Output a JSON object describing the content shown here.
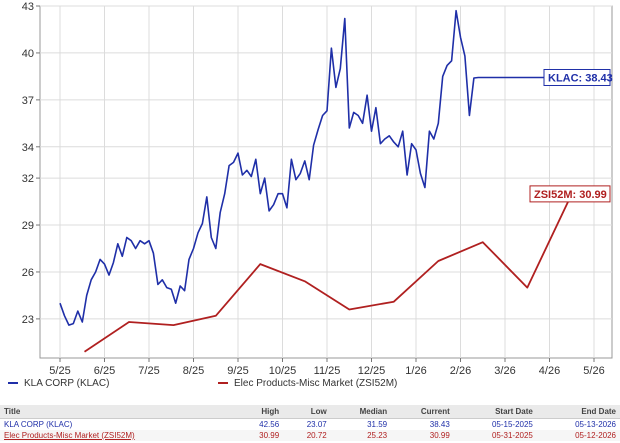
{
  "chart_data": {
    "type": "line",
    "x_ticks": [
      "5/25",
      "6/25",
      "7/25",
      "8/25",
      "9/25",
      "10/25",
      "11/25",
      "12/25",
      "1/26",
      "2/26",
      "3/26",
      "4/26",
      "5/26"
    ],
    "y_ticks": [
      23,
      26,
      29,
      32,
      34,
      37,
      40,
      43
    ],
    "ylim": [
      20.5,
      43
    ],
    "grid": true,
    "legend_position": "bottom-left",
    "series": [
      {
        "name": "KLA CORP (KLAC)",
        "color": "#1f2fa8",
        "label": "KLAC: 38.43",
        "t": [
          0.0,
          0.1,
          0.2,
          0.3,
          0.4,
          0.5,
          0.6,
          0.7,
          0.8,
          0.9,
          1.0,
          1.1,
          1.2,
          1.3,
          1.4,
          1.5,
          1.6,
          1.7,
          1.8,
          1.9,
          2.0,
          2.1,
          2.2,
          2.3,
          2.4,
          2.5,
          2.6,
          2.7,
          2.8,
          2.9,
          3.0,
          3.1,
          3.2,
          3.3,
          3.4,
          3.5,
          3.6,
          3.7,
          3.8,
          3.9,
          4.0,
          4.1,
          4.2,
          4.3,
          4.4,
          4.5,
          4.6,
          4.7,
          4.8,
          4.9,
          5.0,
          5.1,
          5.2,
          5.3,
          5.4,
          5.5,
          5.6,
          5.7,
          5.8,
          5.9,
          6.0,
          6.1,
          6.2,
          6.3,
          6.4,
          6.5,
          6.6,
          6.7,
          6.8,
          6.9,
          7.0,
          7.1,
          7.2,
          7.3,
          7.4,
          7.5,
          7.6,
          7.7,
          7.8,
          7.9,
          8.0,
          8.1,
          8.2,
          8.3,
          8.4,
          8.5,
          8.6,
          8.7,
          8.8,
          8.9,
          9.0,
          9.1,
          9.2,
          9.3,
          9.4,
          9.5,
          9.6,
          9.7,
          9.8,
          9.9,
          10.0,
          10.1,
          10.2,
          10.3,
          10.4,
          10.5,
          10.6,
          10.7,
          10.8,
          10.9,
          11.0,
          11.1,
          11.2,
          11.3,
          11.4,
          11.5,
          11.6,
          11.7
        ],
        "values": [
          24.0,
          23.2,
          22.6,
          22.7,
          23.5,
          22.8,
          24.5,
          25.5,
          26.0,
          26.8,
          26.5,
          25.8,
          26.6,
          27.8,
          27.0,
          28.2,
          28.0,
          27.5,
          28.0,
          27.8,
          28.0,
          27.2,
          25.2,
          25.5,
          25.0,
          24.9,
          24.0,
          25.1,
          24.8,
          26.8,
          27.5,
          28.5,
          29.1,
          30.8,
          28.2,
          27.5,
          29.8,
          31.0,
          32.8,
          33.0,
          33.6,
          32.2,
          32.5,
          32.1,
          33.2,
          31.0,
          32.0,
          29.9,
          30.3,
          31.0,
          31.0,
          30.1,
          33.2,
          31.9,
          32.3,
          33.1,
          31.9,
          34.1,
          35.1,
          36.0,
          36.3,
          40.3,
          37.8,
          39.0,
          42.2,
          35.2,
          36.2,
          36.0,
          35.5,
          37.3,
          35.0,
          36.5,
          34.2,
          34.5,
          34.7,
          34.3,
          34.0,
          35.0,
          32.2,
          34.2,
          33.8,
          32.3,
          31.4,
          35.0,
          34.5,
          35.5,
          38.5,
          39.2,
          39.5,
          42.7,
          41.0,
          39.8,
          36.0,
          38.4,
          38.43,
          38.43,
          38.43,
          38.43,
          38.43,
          38.43,
          38.43,
          38.43,
          38.43,
          38.43,
          38.43,
          38.43,
          38.43,
          38.43,
          38.43,
          38.43,
          38.43,
          38.43,
          38.43,
          38.43,
          38.43,
          38.43,
          38.43,
          38.43
        ]
      },
      {
        "name": "Elec Products-Misc Market (ZSI52M)",
        "color": "#b02020",
        "label": "ZSI52M: 30.99",
        "t": [
          0.55,
          1.55,
          2.55,
          3.5,
          4.5,
          5.5,
          6.5,
          7.5,
          8.5,
          9.5,
          10.5,
          11.5
        ],
        "values": [
          20.9,
          22.8,
          22.6,
          23.2,
          26.5,
          25.4,
          23.6,
          24.1,
          26.7,
          27.9,
          25.0,
          30.99
        ]
      }
    ]
  },
  "legend": [
    {
      "label": "KLA CORP (KLAC)",
      "color": "#1f2fa8"
    },
    {
      "label": "Elec Products-Misc Market (ZSI52M)",
      "color": "#b02020"
    }
  ],
  "table": {
    "headers": [
      "Title",
      "High",
      "Low",
      "Median",
      "Current",
      "Start Date",
      "End Date"
    ],
    "rows": [
      [
        "KLA CORP (KLAC)",
        "42.56",
        "23.07",
        "31.59",
        "38.43",
        "05-15-2025",
        "05-13-2026"
      ],
      [
        "Elec Products-Misc Market (ZSI52M)",
        "30.99",
        "20.72",
        "25.23",
        "30.99",
        "05-31-2025",
        "05-12-2026"
      ]
    ]
  }
}
